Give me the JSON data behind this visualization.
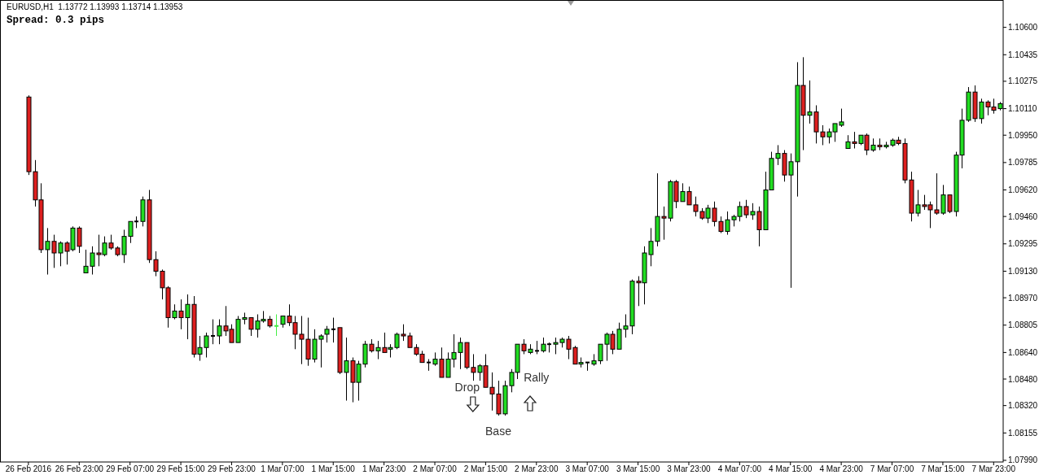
{
  "chart_data": {
    "type": "candlestick",
    "title": "EURUSD,H1  1.13772 1.13993 1.13714 1.13953",
    "subtitle": "Spread: 0.3 pips",
    "categories": [
      "26 Feb 2016",
      null,
      null,
      null,
      null,
      null,
      null,
      null,
      "26 Feb 23:00",
      null,
      null,
      null,
      null,
      null,
      null,
      null,
      "29 Feb 07:00",
      null,
      null,
      null,
      null,
      null,
      null,
      null,
      "29 Feb 15:00",
      null,
      null,
      null,
      null,
      null,
      null,
      null,
      "29 Feb 23:00",
      null,
      null,
      null,
      null,
      null,
      null,
      null,
      "1 Mar 07:00",
      null,
      null,
      null,
      null,
      null,
      null,
      null,
      "1 Mar 15:00",
      null,
      null,
      null,
      null,
      null,
      null,
      null,
      "1 Mar 23:00",
      null,
      null,
      null,
      null,
      null,
      null,
      null,
      "2 Mar 07:00",
      null,
      null,
      null,
      null,
      null,
      null,
      null,
      "2 Mar 15:00",
      null,
      null,
      null,
      null,
      null,
      null,
      null,
      "2 Mar 23:00",
      null,
      null,
      null,
      null,
      null,
      null,
      null,
      "3 Mar 07:00",
      null,
      null,
      null,
      null,
      null,
      null,
      null,
      "3 Mar 15:00",
      null,
      null,
      null,
      null,
      null,
      null,
      null,
      "3 Mar 23:00",
      null,
      null,
      null,
      null,
      null,
      null,
      null,
      "4 Mar 07:00",
      null,
      null,
      null,
      null,
      null,
      null,
      null,
      "4 Mar 15:00",
      null,
      null,
      null,
      null,
      null,
      null,
      null,
      "4 Mar 23:00",
      null,
      null,
      null,
      null,
      null,
      null,
      null,
      "7 Mar 07:00",
      null,
      null,
      null,
      null,
      null,
      null,
      null,
      "7 Mar 15:00",
      null,
      null,
      null,
      null,
      null,
      null,
      null,
      "7 Mar 23:00",
      null
    ],
    "ohlc": [
      [
        1.1018,
        1.1019,
        1.0971,
        1.0973
      ],
      [
        1.0973,
        1.098,
        1.0952,
        1.0956
      ],
      [
        1.0956,
        1.0966,
        1.0924,
        1.0926
      ],
      [
        1.0926,
        1.0939,
        1.0911,
        1.0931
      ],
      [
        1.0931,
        1.0935,
        1.0915,
        1.0924
      ],
      [
        1.0924,
        1.0931,
        1.0916,
        1.093
      ],
      [
        1.093,
        1.0931,
        1.0917,
        1.0925
      ],
      [
        1.0926,
        1.094,
        1.0925,
        1.0939
      ],
      [
        1.0939,
        1.094,
        1.0924,
        1.0928
      ],
      [
        1.0912,
        1.0926,
        1.0912,
        1.0916
      ],
      [
        1.0916,
        1.0928,
        1.0911,
        1.0924
      ],
      [
        1.0924,
        1.0935,
        1.0916,
        1.0923
      ],
      [
        1.0923,
        1.0934,
        1.0922,
        1.093
      ],
      [
        1.093,
        1.0935,
        1.0926,
        1.0927
      ],
      [
        1.0927,
        1.0928,
        1.0922,
        1.0923
      ],
      [
        1.0923,
        1.0938,
        1.0918,
        1.0934
      ],
      [
        1.0934,
        1.0943,
        1.093,
        1.0943
      ],
      [
        1.0943,
        1.0946,
        1.0939,
        1.0943
      ],
      [
        1.0943,
        1.0958,
        1.094,
        1.0956
      ],
      [
        1.0956,
        1.0962,
        1.0918,
        1.092
      ],
      [
        1.092,
        1.0925,
        1.091,
        1.0913
      ],
      [
        1.0913,
        1.0914,
        1.0896,
        1.0903
      ],
      [
        1.0903,
        1.0904,
        1.0879,
        1.0885
      ],
      [
        1.0885,
        1.0893,
        1.0884,
        1.0889
      ],
      [
        1.0889,
        1.0896,
        1.0878,
        1.0885
      ],
      [
        1.0885,
        1.0899,
        1.0872,
        1.0893
      ],
      [
        1.0893,
        1.0898,
        1.0861,
        1.0863
      ],
      [
        1.0863,
        1.0874,
        1.0859,
        1.0867
      ],
      [
        1.0867,
        1.0876,
        1.0861,
        1.0874
      ],
      [
        1.0874,
        1.0884,
        1.0869,
        1.0874
      ],
      [
        1.0874,
        1.0884,
        1.0869,
        1.088
      ],
      [
        1.088,
        1.0892,
        1.0874,
        1.0877
      ],
      [
        1.0878,
        1.0881,
        1.087,
        1.087
      ],
      [
        1.087,
        1.0886,
        1.087,
        1.0884
      ],
      [
        1.0884,
        1.0888,
        1.0881,
        1.0885
      ],
      [
        1.0885,
        1.0885,
        1.0874,
        1.0878
      ],
      [
        1.0878,
        1.0887,
        1.0873,
        1.0883
      ],
      [
        1.0883,
        1.0889,
        1.0882,
        1.0884
      ],
      [
        1.0884,
        1.0886,
        1.0879,
        1.088
      ],
      [
        1.088,
        1.0887,
        1.0874,
        1.088
      ],
      [
        1.0881,
        1.0886,
        1.0879,
        1.0886
      ],
      [
        1.0886,
        1.0893,
        1.088,
        1.0882
      ],
      [
        1.0882,
        1.0886,
        1.0866,
        1.0875
      ],
      [
        1.0875,
        1.0886,
        1.0857,
        1.0872
      ],
      [
        1.0872,
        1.0885,
        1.0856,
        1.086
      ],
      [
        1.086,
        1.0878,
        1.0858,
        1.0872
      ],
      [
        1.0872,
        1.0875,
        1.0855,
        1.0874
      ],
      [
        1.0875,
        1.088,
        1.087,
        1.0878
      ],
      [
        1.0878,
        1.0885,
        1.087,
        1.0878
      ],
      [
        1.0879,
        1.0879,
        1.0851,
        1.0852
      ],
      [
        1.0852,
        1.0873,
        1.0835,
        1.0859
      ],
      [
        1.0859,
        1.0861,
        1.0834,
        1.0846
      ],
      [
        1.0846,
        1.0859,
        1.0835,
        1.0857
      ],
      [
        1.0857,
        1.0871,
        1.0855,
        1.0869
      ],
      [
        1.0869,
        1.0872,
        1.0864,
        1.0865
      ],
      [
        1.0865,
        1.0871,
        1.086,
        1.0867
      ],
      [
        1.0867,
        1.0876,
        1.0864,
        1.0864
      ],
      [
        1.0866,
        1.0869,
        1.0861,
        1.0867
      ],
      [
        1.0867,
        1.0876,
        1.0866,
        1.0875
      ],
      [
        1.0875,
        1.0881,
        1.0871,
        1.0874
      ],
      [
        1.0874,
        1.0876,
        1.0867,
        1.0867
      ],
      [
        1.0867,
        1.0869,
        1.0862,
        1.0863
      ],
      [
        1.0863,
        1.0865,
        1.0858,
        1.0858
      ],
      [
        1.0858,
        1.086,
        1.0853,
        1.0858
      ],
      [
        1.0857,
        1.0864,
        1.0856,
        1.086
      ],
      [
        1.086,
        1.0867,
        1.0849,
        1.0849
      ],
      [
        1.0849,
        1.0864,
        1.0849,
        1.086
      ],
      [
        1.086,
        1.0875,
        1.0855,
        1.0864
      ],
      [
        1.0864,
        1.0873,
        1.0854,
        1.087
      ],
      [
        1.087,
        1.087,
        1.0854,
        1.0855
      ],
      [
        1.0855,
        1.0863,
        1.0847,
        1.0852
      ],
      [
        1.0852,
        1.0857,
        1.0847,
        1.0856
      ],
      [
        1.0856,
        1.0863,
        1.0843,
        1.0843
      ],
      [
        1.0843,
        1.0852,
        1.0829,
        1.0839
      ],
      [
        1.0839,
        1.0847,
        1.0826,
        1.0827
      ],
      [
        1.0827,
        1.0847,
        1.0826,
        1.0844
      ],
      [
        1.0844,
        1.0854,
        1.084,
        1.0852
      ],
      [
        1.0852,
        1.0869,
        1.0848,
        1.0869
      ],
      [
        1.0869,
        1.0872,
        1.0863,
        1.0865
      ],
      [
        1.0864,
        1.0869,
        1.0863,
        1.0866
      ],
      [
        1.0865,
        1.0871,
        1.0863,
        1.0865
      ],
      [
        1.0865,
        1.0873,
        1.0864,
        1.0869
      ],
      [
        1.0869,
        1.087,
        1.0864,
        1.0869
      ],
      [
        1.0869,
        1.0873,
        1.0863,
        1.087
      ],
      [
        1.087,
        1.0873,
        1.0867,
        1.0872
      ],
      [
        1.0872,
        1.0874,
        1.086,
        1.0866
      ],
      [
        1.0867,
        1.0868,
        1.0857,
        1.0857
      ],
      [
        1.0857,
        1.0861,
        1.0855,
        1.0858
      ],
      [
        1.0858,
        1.0858,
        1.0853,
        1.0858
      ],
      [
        1.0857,
        1.0863,
        1.0856,
        1.0859
      ],
      [
        1.0859,
        1.0869,
        1.0857,
        1.0869
      ],
      [
        1.0869,
        1.0876,
        1.0859,
        1.0875
      ],
      [
        1.0875,
        1.0877,
        1.0863,
        1.0866
      ],
      [
        1.0866,
        1.0882,
        1.0866,
        1.0878
      ],
      [
        1.0878,
        1.0887,
        1.0873,
        1.088
      ],
      [
        1.088,
        1.0908,
        1.0875,
        1.0907
      ],
      [
        1.0907,
        1.091,
        1.0892,
        1.0906
      ],
      [
        1.0906,
        1.0928,
        1.0893,
        1.0924
      ],
      [
        1.0923,
        1.0939,
        1.0916,
        1.0931
      ],
      [
        1.0931,
        1.0972,
        1.0928,
        1.0946
      ],
      [
        1.0946,
        1.0952,
        1.0932,
        1.0945
      ],
      [
        1.0945,
        1.0968,
        1.0943,
        1.0967
      ],
      [
        1.0967,
        1.0968,
        1.0951,
        1.0955
      ],
      [
        1.0955,
        1.0966,
        1.0955,
        1.0961
      ],
      [
        1.0961,
        1.0964,
        1.0953,
        1.0953
      ],
      [
        1.0953,
        1.0958,
        1.0946,
        1.0949
      ],
      [
        1.0949,
        1.0951,
        1.0944,
        1.0945
      ],
      [
        1.0945,
        1.0953,
        1.0942,
        1.0951
      ],
      [
        1.0951,
        1.0955,
        1.094,
        1.0943
      ],
      [
        1.0943,
        1.0946,
        1.0936,
        1.0937
      ],
      [
        1.0937,
        1.0949,
        1.0935,
        1.0944
      ],
      [
        1.0944,
        1.0947,
        1.094,
        1.0946
      ],
      [
        1.0946,
        1.0955,
        1.0943,
        1.0952
      ],
      [
        1.0952,
        1.0956,
        1.0945,
        1.0947
      ],
      [
        1.0947,
        1.0954,
        1.0944,
        1.0949
      ],
      [
        1.0949,
        1.0952,
        1.0928,
        1.0938
      ],
      [
        1.0938,
        1.0973,
        1.0938,
        1.0962
      ],
      [
        1.0962,
        1.0985,
        1.0962,
        1.0981
      ],
      [
        1.0981,
        1.0989,
        1.0977,
        1.0984
      ],
      [
        1.0984,
        1.0986,
        1.0967,
        1.0971
      ],
      [
        1.0971,
        1.0984,
        1.0903,
        1.0979
      ],
      [
        1.0979,
        1.1039,
        1.0958,
        1.1025
      ],
      [
        1.1025,
        1.1042,
        1.0986,
        1.1007
      ],
      [
        1.1007,
        1.1028,
        1.1002,
        1.1009
      ],
      [
        1.1009,
        1.1013,
        1.099,
        1.0997
      ],
      [
        1.0997,
        1.1001,
        1.0989,
        1.0994
      ],
      [
        1.0994,
        1.0999,
        1.099,
        1.0997
      ],
      [
        1.0997,
        1.1002,
        1.0991,
        1.1002
      ],
      [
        1.1001,
        1.1011,
        1.1,
        1.1003
      ],
      [
        1.0987,
        1.0995,
        1.0987,
        1.0991
      ],
      [
        1.0991,
        1.0997,
        1.0987,
        1.099
      ],
      [
        1.099,
        1.0995,
        1.0989,
        1.0995
      ],
      [
        1.0995,
        1.0996,
        1.0983,
        1.0986
      ],
      [
        1.0986,
        1.0993,
        1.0985,
        1.0989
      ],
      [
        1.0989,
        1.0993,
        1.0986,
        1.0988
      ],
      [
        1.0988,
        1.0991,
        1.0987,
        1.0989
      ],
      [
        1.0989,
        1.0993,
        1.0988,
        1.0992
      ],
      [
        1.0992,
        1.0994,
        1.0989,
        1.099
      ],
      [
        1.099,
        1.0993,
        1.0966,
        1.0968
      ],
      [
        1.0968,
        1.0973,
        1.0943,
        1.0948
      ],
      [
        1.0948,
        1.0962,
        1.0946,
        1.0953
      ],
      [
        1.0953,
        1.0959,
        1.095,
        1.0952
      ],
      [
        1.0953,
        1.0955,
        1.0939,
        1.095
      ],
      [
        1.095,
        1.0972,
        1.0947,
        1.0948
      ],
      [
        1.0948,
        1.0965,
        1.0947,
        1.0959
      ],
      [
        1.0959,
        1.0959,
        1.0948,
        1.0949
      ],
      [
        1.0949,
        1.0985,
        1.0946,
        1.0983
      ],
      [
        1.0983,
        1.1011,
        1.0975,
        1.1004
      ],
      [
        1.1004,
        1.1024,
        1.1003,
        1.1021
      ],
      [
        1.1021,
        1.1025,
        1.1003,
        1.1005
      ],
      [
        1.1005,
        1.1017,
        1.1002,
        1.1015
      ],
      [
        1.1015,
        1.1016,
        1.1007,
        1.1012
      ],
      [
        1.1012,
        1.1017,
        1.1008,
        1.101
      ],
      [
        1.1011,
        1.1015,
        1.101,
        1.1014
      ]
    ],
    "colors": [
      "#dd1f1f",
      "#dd1f1f",
      "#dd1f1f",
      "#22dd22",
      "#dd1f1f",
      "#22dd22",
      "#dd1f1f",
      "#22dd22",
      "#dd1f1f",
      "#22dd22",
      "#22dd22",
      "#dd1f1f",
      "#22dd22",
      "#dd1f1f",
      "#dd1f1f",
      "#22dd22",
      "#22dd22",
      "#000000",
      "#22dd22",
      "#dd1f1f",
      "#dd1f1f",
      "#dd1f1f",
      "#dd1f1f",
      "#22dd22",
      "#dd1f1f",
      "#22dd22",
      "#dd1f1f",
      "#22dd22",
      "#22dd22",
      "#000000",
      "#22dd22",
      "#dd1f1f",
      "#dd1f1f",
      "#22dd22",
      "#22dd22",
      "#dd1f1f",
      "#22dd22",
      "#22dd22",
      "#dd1f1f",
      "#44ee44",
      "#22dd22",
      "#dd1f1f",
      "#dd1f1f",
      "#dd1f1f",
      "#dd1f1f",
      "#22dd22",
      "#22dd22",
      "#22dd22",
      "#000000",
      "#dd1f1f",
      "#22dd22",
      "#dd1f1f",
      "#22dd22",
      "#22dd22",
      "#dd1f1f",
      "#22dd22",
      "#dd1f1f",
      "#22dd22",
      "#22dd22",
      "#dd1f1f",
      "#dd1f1f",
      "#dd1f1f",
      "#dd1f1f",
      "#000000",
      "#22dd22",
      "#dd1f1f",
      "#22dd22",
      "#22dd22",
      "#22dd22",
      "#dd1f1f",
      "#dd1f1f",
      "#22dd22",
      "#dd1f1f",
      "#dd1f1f",
      "#dd1f1f",
      "#22dd22",
      "#22dd22",
      "#22dd22",
      "#dd1f1f",
      "#22dd22",
      "#000000",
      "#22dd22",
      "#000000",
      "#22dd22",
      "#22dd22",
      "#dd1f1f",
      "#dd1f1f",
      "#22dd22",
      "#000000",
      "#22dd22",
      "#22dd22",
      "#22dd22",
      "#dd1f1f",
      "#22dd22",
      "#22dd22",
      "#22dd22",
      "#dd1f1f",
      "#22dd22",
      "#22dd22",
      "#22dd22",
      "#dd1f1f",
      "#22dd22",
      "#dd1f1f",
      "#22dd22",
      "#dd1f1f",
      "#dd1f1f",
      "#dd1f1f",
      "#22dd22",
      "#dd1f1f",
      "#dd1f1f",
      "#22dd22",
      "#22dd22",
      "#22dd22",
      "#dd1f1f",
      "#22dd22",
      "#dd1f1f",
      "#22dd22",
      "#22dd22",
      "#22dd22",
      "#dd1f1f",
      "#22dd22",
      "#22dd22",
      "#dd1f1f",
      "#22dd22",
      "#dd1f1f",
      "#dd1f1f",
      "#22dd22",
      "#22dd22",
      "#22dd22",
      "#22dd22",
      "#dd1f1f",
      "#22dd22",
      "#dd1f1f",
      "#22dd22",
      "#dd1f1f",
      "#22dd22",
      "#22dd22",
      "#dd1f1f",
      "#dd1f1f",
      "#dd1f1f",
      "#22dd22",
      "#dd1f1f",
      "#dd1f1f",
      "#dd1f1f",
      "#22dd22",
      "#dd1f1f",
      "#22dd22",
      "#22dd22",
      "#22dd22",
      "#dd1f1f",
      "#22dd22",
      "#dd1f1f",
      "#dd1f1f",
      "#22dd22"
    ],
    "ylim": [
      1.0798,
      1.1076
    ],
    "yticks": [
      {
        "value": 1.106,
        "label": "1.10600"
      },
      {
        "value": 1.10435,
        "label": "1.10435"
      },
      {
        "value": 1.10275,
        "label": "1.10275"
      },
      {
        "value": 1.1011,
        "label": "1.10110"
      },
      {
        "value": 1.0995,
        "label": "1.09950"
      },
      {
        "value": 1.09785,
        "label": "1.09785"
      },
      {
        "value": 1.0962,
        "label": "1.09620"
      },
      {
        "value": 1.0946,
        "label": "1.09460"
      },
      {
        "value": 1.09295,
        "label": "1.09295"
      },
      {
        "value": 1.0913,
        "label": "1.09130"
      },
      {
        "value": 1.0897,
        "label": "1.08970"
      },
      {
        "value": 1.08805,
        "label": "1.08805"
      },
      {
        "value": 1.0864,
        "label": "1.08640"
      },
      {
        "value": 1.0848,
        "label": "1.08480"
      },
      {
        "value": 1.0832,
        "label": "1.08320"
      },
      {
        "value": 1.08155,
        "label": "1.08155"
      },
      {
        "value": 1.0799,
        "label": "1.07990"
      }
    ],
    "annotations": [
      "Drop",
      "Base",
      "Rally"
    ]
  }
}
